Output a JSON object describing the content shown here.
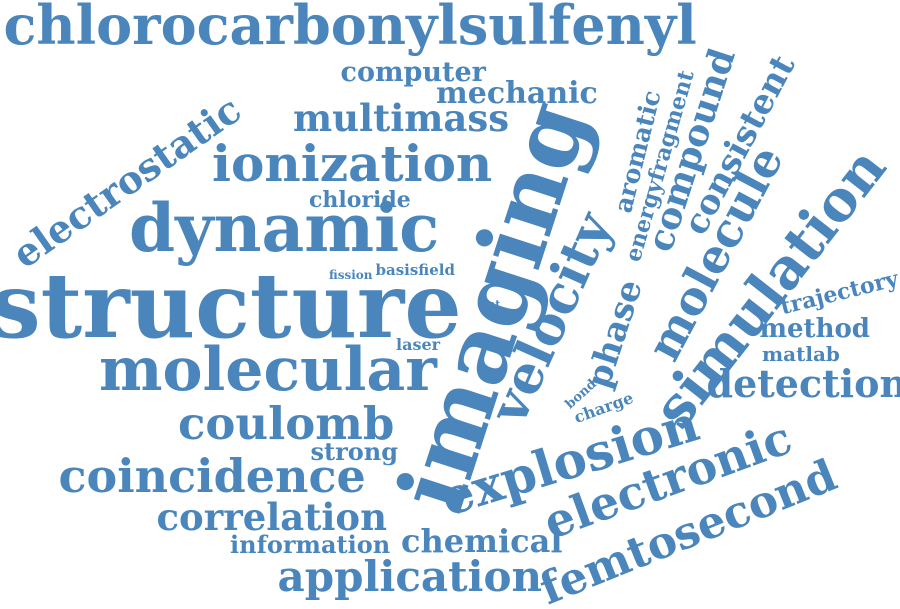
{
  "color": "#4a86bb",
  "words": [
    {
      "id": "chlorocarbonylsulfenyl",
      "text": "chlorocarbonylsulfenyl"
    },
    {
      "id": "computer",
      "text": "computer"
    },
    {
      "id": "mechanic",
      "text": "mechanic"
    },
    {
      "id": "multimass",
      "text": "multimass"
    },
    {
      "id": "ionization",
      "text": "ionization"
    },
    {
      "id": "electrostatic",
      "text": "electrostatic"
    },
    {
      "id": "chloride",
      "text": "chloride"
    },
    {
      "id": "dynamic",
      "text": "dynamic"
    },
    {
      "id": "fission",
      "text": "fission"
    },
    {
      "id": "basisfield",
      "text": "basisfield"
    },
    {
      "id": "structure",
      "text": "structure"
    },
    {
      "id": "set",
      "text": "set"
    },
    {
      "id": "laser",
      "text": "laser"
    },
    {
      "id": "molecular",
      "text": "molecular"
    },
    {
      "id": "coulomb",
      "text": "coulomb"
    },
    {
      "id": "strong",
      "text": "strong"
    },
    {
      "id": "coincidence",
      "text": "coincidence"
    },
    {
      "id": "correlation",
      "text": "correlation"
    },
    {
      "id": "information",
      "text": "information"
    },
    {
      "id": "chemical",
      "text": "chemical"
    },
    {
      "id": "application",
      "text": "application"
    },
    {
      "id": "imaging",
      "text": "imaging"
    },
    {
      "id": "velocity",
      "text": "velocity"
    },
    {
      "id": "explosion",
      "text": "explosion"
    },
    {
      "id": "electronic",
      "text": "electronic"
    },
    {
      "id": "femtosecond",
      "text": "femtosecond"
    },
    {
      "id": "phase",
      "text": "phase"
    },
    {
      "id": "aromatic",
      "text": "aromatic"
    },
    {
      "id": "energyfragment",
      "text": "energyfragment"
    },
    {
      "id": "compound",
      "text": "compound"
    },
    {
      "id": "consistent",
      "text": "consistent"
    },
    {
      "id": "molecule",
      "text": "molecule"
    },
    {
      "id": "simulation",
      "text": "simulation"
    },
    {
      "id": "bond",
      "text": "bond"
    },
    {
      "id": "charge",
      "text": "charge"
    },
    {
      "id": "trajectory",
      "text": "trajectory"
    },
    {
      "id": "method",
      "text": "method"
    },
    {
      "id": "matlab",
      "text": "matlab"
    },
    {
      "id": "detection",
      "text": "detection"
    }
  ]
}
